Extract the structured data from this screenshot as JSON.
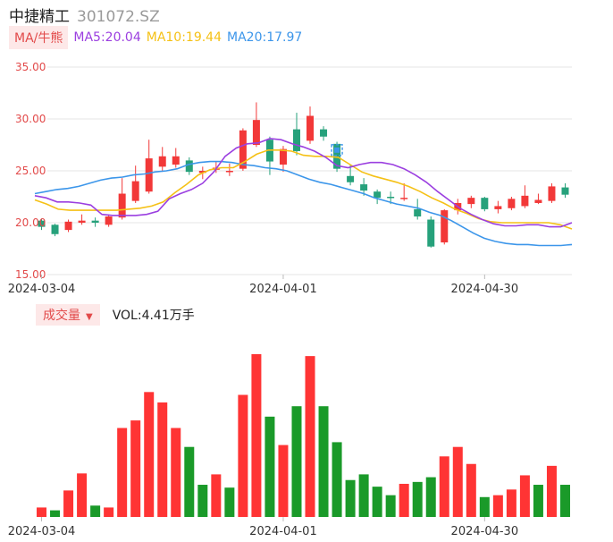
{
  "header": {
    "name": "中捷精工",
    "code": "301072.SZ"
  },
  "ma_legend": {
    "badge": "MA/牛熊",
    "ma5": "MA5:20.04",
    "ma10": "MA10:19.44",
    "ma20": "MA20:17.97"
  },
  "volume_legend": {
    "badge": "成交量",
    "text": "VOL:4.41万手"
  },
  "colors": {
    "up": "#f23838",
    "down": "#26a17b",
    "vol_up": "#ff3434",
    "vol_down": "#1a9a29",
    "ma5": "#9b3fe0",
    "ma10": "#f5c116",
    "ma20": "#3c96ea",
    "axis_label": "#e24a4a",
    "grid": "#e6e6e6"
  },
  "chart_data": [
    {
      "type": "candlestick",
      "yticks": [
        "35.00",
        "30.00",
        "25.00",
        "20.00",
        "15.00"
      ],
      "ylim": [
        15,
        35
      ],
      "xticks": [
        "2024-03-04",
        "2024-04-01",
        "2024-04-30"
      ],
      "xtick_index": [
        0,
        18,
        33
      ],
      "candles": [
        {
          "o": 20.2,
          "c": 19.6,
          "h": 20.4,
          "l": 19.3
        },
        {
          "o": 19.8,
          "c": 18.9,
          "h": 19.9,
          "l": 18.7
        },
        {
          "o": 19.3,
          "c": 20.1,
          "h": 20.3,
          "l": 19.1
        },
        {
          "o": 20.0,
          "c": 20.2,
          "h": 20.8,
          "l": 19.8
        },
        {
          "o": 20.2,
          "c": 20.0,
          "h": 20.5,
          "l": 19.6
        },
        {
          "o": 19.8,
          "c": 20.6,
          "h": 20.8,
          "l": 19.6
        },
        {
          "o": 20.5,
          "c": 22.8,
          "h": 24.3,
          "l": 20.3
        },
        {
          "o": 22.1,
          "c": 24.0,
          "h": 25.5,
          "l": 21.9
        },
        {
          "o": 23.0,
          "c": 26.2,
          "h": 28.0,
          "l": 22.8
        },
        {
          "o": 25.4,
          "c": 26.4,
          "h": 27.3,
          "l": 24.9
        },
        {
          "o": 25.6,
          "c": 26.4,
          "h": 27.2,
          "l": 25.3
        },
        {
          "o": 26.0,
          "c": 24.9,
          "h": 26.3,
          "l": 24.6
        },
        {
          "o": 24.8,
          "c": 25.0,
          "h": 25.4,
          "l": 24.2
        },
        {
          "o": 25.1,
          "c": 25.3,
          "h": 25.9,
          "l": 24.8
        },
        {
          "o": 24.9,
          "c": 25.0,
          "h": 25.7,
          "l": 24.5
        },
        {
          "o": 25.2,
          "c": 28.9,
          "h": 29.1,
          "l": 25.0
        },
        {
          "o": 27.5,
          "c": 29.9,
          "h": 31.6,
          "l": 27.3
        },
        {
          "o": 28.0,
          "c": 25.9,
          "h": 28.3,
          "l": 24.6
        },
        {
          "o": 25.6,
          "c": 27.1,
          "h": 27.4,
          "l": 24.9
        },
        {
          "o": 29.0,
          "c": 26.9,
          "h": 30.6,
          "l": 26.5
        },
        {
          "o": 27.9,
          "c": 30.3,
          "h": 31.2,
          "l": 27.6
        },
        {
          "o": 29.0,
          "c": 28.3,
          "h": 29.3,
          "l": 27.9
        },
        {
          "o": 27.6,
          "c": 25.2,
          "h": 27.8,
          "l": 24.9
        },
        {
          "o": 24.5,
          "c": 23.9,
          "h": 25.6,
          "l": 23.6
        },
        {
          "o": 23.7,
          "c": 23.1,
          "h": 24.3,
          "l": 22.6
        },
        {
          "o": 23.0,
          "c": 22.4,
          "h": 23.2,
          "l": 21.8
        },
        {
          "o": 22.5,
          "c": 22.4,
          "h": 23.0,
          "l": 21.8
        },
        {
          "o": 22.3,
          "c": 22.4,
          "h": 23.8,
          "l": 22.1
        },
        {
          "o": 21.3,
          "c": 20.6,
          "h": 22.3,
          "l": 20.3
        },
        {
          "o": 20.3,
          "c": 17.7,
          "h": 20.6,
          "l": 17.6
        },
        {
          "o": 18.1,
          "c": 21.2,
          "h": 21.3,
          "l": 17.9
        },
        {
          "o": 21.2,
          "c": 21.9,
          "h": 22.3,
          "l": 20.8
        },
        {
          "o": 21.8,
          "c": 22.4,
          "h": 22.6,
          "l": 21.4
        },
        {
          "o": 22.4,
          "c": 21.3,
          "h": 22.5,
          "l": 21.1
        },
        {
          "o": 21.3,
          "c": 21.6,
          "h": 22.1,
          "l": 20.9
        },
        {
          "o": 21.4,
          "c": 22.3,
          "h": 22.5,
          "l": 21.2
        },
        {
          "o": 21.6,
          "c": 22.6,
          "h": 23.6,
          "l": 21.4
        },
        {
          "o": 21.9,
          "c": 22.2,
          "h": 22.8,
          "l": 21.8
        },
        {
          "o": 22.1,
          "c": 23.5,
          "h": 23.8,
          "l": 21.9
        },
        {
          "o": 23.4,
          "c": 22.7,
          "h": 23.8,
          "l": 22.4
        }
      ],
      "ma5": [
        22.6,
        22.4,
        22.0,
        22.0,
        21.9,
        21.7,
        20.8,
        20.7,
        20.7,
        20.7,
        20.8,
        21.1,
        22.3,
        22.8,
        23.2,
        23.8,
        24.9,
        26.4,
        27.2,
        27.6,
        27.7,
        28.1,
        28.0,
        27.6,
        27.3,
        26.9,
        26.3,
        25.5,
        25.3,
        25.6,
        25.8,
        25.8,
        25.6,
        25.2,
        24.6,
        23.9,
        23.0,
        22.2,
        21.4,
        20.8,
        20.3,
        19.9,
        19.7,
        19.7,
        19.8,
        19.8,
        19.6,
        19.6,
        20.0
      ],
      "ma10": [
        22.2,
        21.8,
        21.3,
        21.2,
        21.2,
        21.2,
        21.2,
        21.2,
        21.3,
        21.4,
        21.6,
        22.0,
        22.9,
        23.7,
        24.6,
        25.1,
        25.3,
        25.3,
        25.9,
        26.6,
        27.0,
        27.0,
        26.9,
        26.5,
        26.4,
        26.4,
        26.3,
        25.6,
        24.9,
        24.5,
        24.2,
        23.9,
        23.5,
        23.0,
        22.4,
        21.9,
        21.3,
        20.9,
        20.4,
        20.1,
        20.0,
        20.0,
        20.0,
        20.0,
        20.0,
        19.8,
        19.4
      ],
      "ma20": [
        22.8,
        23.0,
        23.2,
        23.3,
        23.5,
        23.8,
        24.1,
        24.3,
        24.4,
        24.6,
        24.7,
        24.9,
        25.0,
        25.2,
        25.6,
        25.8,
        25.9,
        25.9,
        25.8,
        25.6,
        25.5,
        25.3,
        25.2,
        25.0,
        24.6,
        24.2,
        23.9,
        23.7,
        23.4,
        23.1,
        22.8,
        22.4,
        22.1,
        21.8,
        21.6,
        21.4,
        21.0,
        20.7,
        20.2,
        19.6,
        19.0,
        18.5,
        18.2,
        18.0,
        17.9,
        17.9,
        17.8,
        17.8,
        17.8,
        17.9
      ]
    },
    {
      "type": "bar",
      "title": "成交量",
      "values": [
        1.0,
        0.7,
        2.8,
        4.6,
        1.2,
        1.0,
        9.4,
        10.2,
        13.2,
        12.1,
        9.4,
        7.4,
        3.4,
        4.5,
        3.1,
        12.9,
        17.2,
        10.6,
        7.6,
        11.7,
        17.0,
        11.7,
        7.9,
        3.9,
        4.5,
        3.2,
        2.3,
        3.5,
        3.7,
        4.2,
        6.4,
        7.4,
        5.6,
        2.1,
        2.3,
        2.9,
        4.4,
        3.4,
        5.4,
        3.4
      ],
      "up": [
        true,
        false,
        true,
        true,
        false,
        true,
        true,
        true,
        true,
        true,
        true,
        false,
        false,
        true,
        false,
        true,
        true,
        false,
        true,
        false,
        true,
        false,
        false,
        false,
        false,
        false,
        false,
        true,
        false,
        false,
        true,
        true,
        true,
        false,
        true,
        true,
        true,
        false,
        true,
        false
      ]
    }
  ]
}
